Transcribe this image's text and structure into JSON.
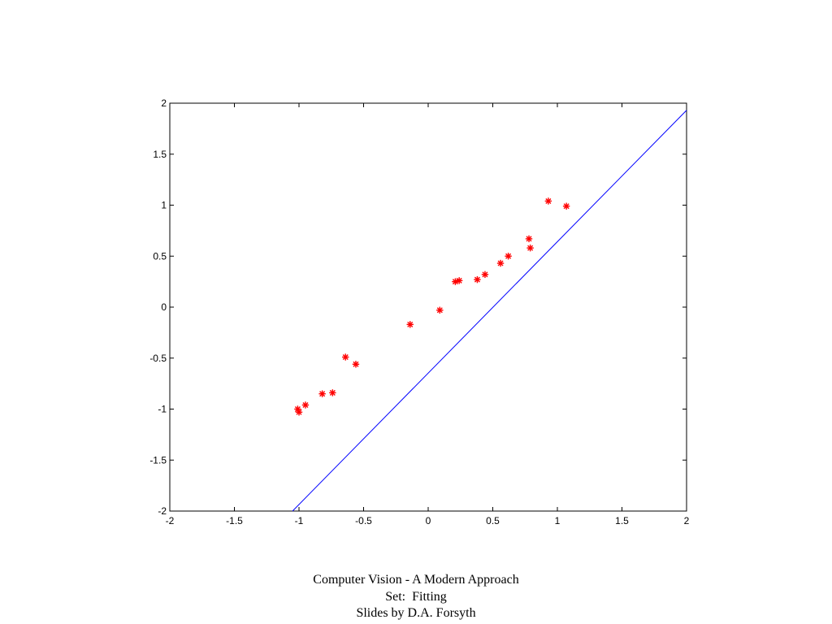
{
  "chart_data": {
    "type": "scatter",
    "title": "",
    "xlabel": "",
    "ylabel": "",
    "xlim": [
      -2,
      2
    ],
    "ylim": [
      -2,
      2
    ],
    "grid": false,
    "x_ticks": [
      "-2",
      "-1.5",
      "-1",
      "-0.5",
      "0",
      "0.5",
      "1",
      "1.5",
      "2"
    ],
    "y_ticks": [
      "-2",
      "-1.5",
      "-1",
      "-0.5",
      "0",
      "0.5",
      "1",
      "1.5",
      "2"
    ],
    "series": [
      {
        "style": "scatter",
        "marker": "asterisk",
        "color": "#ff0000",
        "points": [
          [
            -1.01,
            -1.0
          ],
          [
            -1.0,
            -1.03
          ],
          [
            -0.95,
            -0.96
          ],
          [
            -0.82,
            -0.85
          ],
          [
            -0.74,
            -0.84
          ],
          [
            -0.64,
            -0.49
          ],
          [
            -0.56,
            -0.56
          ],
          [
            -0.14,
            -0.17
          ],
          [
            0.09,
            -0.03
          ],
          [
            0.21,
            0.25
          ],
          [
            0.24,
            0.26
          ],
          [
            0.38,
            0.27
          ],
          [
            0.44,
            0.32
          ],
          [
            0.56,
            0.43
          ],
          [
            0.62,
            0.5
          ],
          [
            0.78,
            0.67
          ],
          [
            0.79,
            0.58
          ],
          [
            0.93,
            1.04
          ],
          [
            1.07,
            0.99
          ]
        ]
      },
      {
        "style": "line",
        "color": "#0000ff",
        "points": [
          [
            -1.05,
            -2.0
          ],
          [
            2.0,
            1.93
          ]
        ]
      }
    ]
  },
  "caption": {
    "line1": "Computer Vision - A Modern Approach",
    "line2": "Set:  Fitting",
    "line3": "Slides by D.A. Forsyth"
  }
}
